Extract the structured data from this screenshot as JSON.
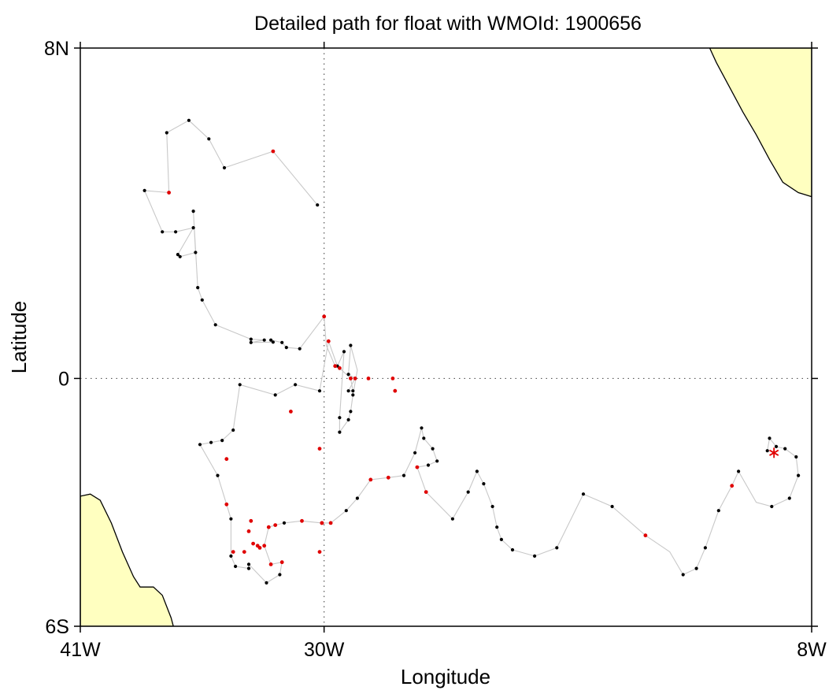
{
  "map": {
    "title": "Detailed path for float with WMOId: 1900656",
    "xlabel": "Longitude",
    "ylabel": "Latitude",
    "lon_range": [
      -41,
      -8
    ],
    "lat_range": [
      -6,
      8
    ],
    "x_ticks": [
      {
        "value": -41,
        "label": "41W"
      },
      {
        "value": -30,
        "label": "30W"
      },
      {
        "value": -8,
        "label": "8W"
      }
    ],
    "y_ticks": [
      {
        "value": 8,
        "label": "8N"
      },
      {
        "value": 0,
        "label": "0"
      },
      {
        "value": -6,
        "label": "6S"
      }
    ],
    "gridlines": {
      "lon": [
        -30
      ],
      "lat": [
        0
      ]
    },
    "colors": {
      "land": "#ffffc0",
      "coast": "#000000",
      "path": "#c8c8c8",
      "profile": "#000000",
      "highlight": "#e00000",
      "last_position": "#e00000",
      "grid": "#555555"
    },
    "land": {
      "brazil": [
        [
          -41,
          -2.85
        ],
        [
          -40.55,
          -2.8
        ],
        [
          -40.1,
          -2.95
        ],
        [
          -39.6,
          -3.5
        ],
        [
          -39.1,
          -4.2
        ],
        [
          -38.6,
          -4.8
        ],
        [
          -38.3,
          -5.05
        ],
        [
          -37.7,
          -5.05
        ],
        [
          -37.3,
          -5.25
        ],
        [
          -36.9,
          -5.8
        ],
        [
          -36.8,
          -6
        ],
        [
          -41,
          -6
        ]
      ],
      "africa": [
        [
          -12.6,
          8
        ],
        [
          -12.3,
          7.65
        ],
        [
          -11.75,
          7.1
        ],
        [
          -11.1,
          6.45
        ],
        [
          -10.5,
          5.9
        ],
        [
          -9.9,
          5.3
        ],
        [
          -9.3,
          4.75
        ],
        [
          -8.6,
          4.5
        ],
        [
          -8,
          4.4
        ],
        [
          -8,
          8
        ]
      ]
    },
    "track": [
      [
        -30.3,
        4.2
      ],
      [
        -32.3,
        5.5
      ],
      [
        -34.5,
        5.1
      ],
      [
        -35.2,
        5.8
      ],
      [
        -36.1,
        6.25
      ],
      [
        -37.1,
        5.95
      ],
      [
        -37,
        4.5
      ],
      [
        -38.1,
        4.55
      ],
      [
        -37.3,
        3.55
      ],
      [
        -36.7,
        3.55
      ],
      [
        -35.9,
        3.65
      ],
      [
        -36.6,
        3
      ],
      [
        -36.5,
        2.95
      ],
      [
        -35.8,
        3.05
      ],
      [
        -35.9,
        4.05
      ],
      [
        -35.7,
        2.2
      ],
      [
        -35.5,
        1.9
      ],
      [
        -34.9,
        1.3
      ],
      [
        -33.3,
        0.95
      ],
      [
        -32.7,
        0.93
      ],
      [
        -33.3,
        0.87
      ],
      [
        -32.3,
        0.88
      ],
      [
        -32.4,
        0.93
      ],
      [
        -31.9,
        0.87
      ],
      [
        -31.7,
        0.75
      ],
      [
        -31.1,
        0.72
      ],
      [
        -30,
        1.5
      ],
      [
        -29.9,
        0.8
      ],
      [
        -29.5,
        0.3
      ],
      [
        -29.3,
        0.25
      ],
      [
        -28.8,
        0.0
      ],
      [
        -28.7,
        -0.3
      ],
      [
        -28.9,
        -0.3
      ],
      [
        -28.6,
        0
      ],
      [
        -28.9,
        0.1
      ],
      [
        -28.8,
        0.8
      ],
      [
        -28.5,
        0.2
      ],
      [
        -28.7,
        -0.4
      ],
      [
        -28.8,
        -0.8
      ],
      [
        -28.9,
        -1.0
      ],
      [
        -29.3,
        -1.3
      ],
      [
        -29.3,
        -0.95
      ],
      [
        -29.1,
        0.65
      ],
      [
        -29.4,
        0.3
      ],
      [
        -29.8,
        0.9
      ],
      [
        -30.2,
        -0.3
      ],
      [
        -31.3,
        -0.15
      ],
      [
        -32.2,
        -0.4
      ],
      [
        -33.8,
        -0.15
      ],
      [
        -34.1,
        -1.25
      ],
      [
        -34.6,
        -1.5
      ],
      [
        -35.1,
        -1.55
      ],
      [
        -35.6,
        -1.6
      ],
      [
        -34.8,
        -2.35
      ],
      [
        -34.4,
        -3.05
      ],
      [
        -34.2,
        -3.4
      ],
      [
        -34.2,
        -4.3
      ],
      [
        -34,
        -4.55
      ],
      [
        -33.4,
        -4.6
      ],
      [
        -33.4,
        -4.5
      ],
      [
        -32.6,
        -4.95
      ],
      [
        -32,
        -4.75
      ],
      [
        -31.9,
        -4.45
      ],
      [
        -32.4,
        -4.5
      ],
      [
        -32.7,
        -4.05
      ],
      [
        -32.5,
        -3.6
      ],
      [
        -32.2,
        -3.55
      ],
      [
        -31.8,
        -3.5
      ],
      [
        -31,
        -3.45
      ],
      [
        -30.1,
        -3.5
      ],
      [
        -29.7,
        -3.5
      ],
      [
        -29.0,
        -3.2
      ],
      [
        -28.5,
        -2.9
      ],
      [
        -27.9,
        -2.45
      ],
      [
        -27.1,
        -2.4
      ],
      [
        -26.4,
        -2.35
      ],
      [
        -25.9,
        -1.8
      ],
      [
        -25.6,
        -1.2
      ],
      [
        -25.5,
        -1.45
      ],
      [
        -25.1,
        -1.7
      ],
      [
        -24.9,
        -2.0
      ],
      [
        -25.3,
        -2.1
      ],
      [
        -25.8,
        -2.15
      ],
      [
        -25.4,
        -2.75
      ],
      [
        -24.2,
        -3.4
      ],
      [
        -23.5,
        -2.75
      ],
      [
        -23.1,
        -2.25
      ],
      [
        -22.8,
        -2.55
      ],
      [
        -22.4,
        -3.1
      ],
      [
        -22.2,
        -3.6
      ],
      [
        -22.0,
        -3.9
      ],
      [
        -21.5,
        -4.15
      ],
      [
        -20.5,
        -4.3
      ],
      [
        -19.5,
        -4.1
      ],
      [
        -18.3,
        -2.8
      ],
      [
        -17.0,
        -3.1
      ],
      [
        -15.5,
        -3.8
      ],
      [
        -14.4,
        -4.2
      ],
      [
        -13.8,
        -4.75
      ],
      [
        -13.2,
        -4.6
      ],
      [
        -12.8,
        -4.1
      ],
      [
        -12.2,
        -3.2
      ],
      [
        -11.6,
        -2.6
      ],
      [
        -11.3,
        -2.25
      ],
      [
        -10.5,
        -3.0
      ],
      [
        -9.8,
        -3.1
      ],
      [
        -9.0,
        -2.9
      ],
      [
        -8.6,
        -2.35
      ],
      [
        -8.7,
        -1.9
      ],
      [
        -9.2,
        -1.7
      ],
      [
        -9.6,
        -1.65
      ],
      [
        -9.9,
        -1.45
      ],
      [
        -10.0,
        -1.75
      ]
    ],
    "profiles": [
      [
        -30.3,
        4.2
      ],
      [
        -34.5,
        5.1
      ],
      [
        -35.2,
        5.8
      ],
      [
        -36.1,
        6.25
      ],
      [
        -37.1,
        5.95
      ],
      [
        -38.1,
        4.55
      ],
      [
        -37.3,
        3.55
      ],
      [
        -36.7,
        3.55
      ],
      [
        -35.9,
        3.65
      ],
      [
        -36.6,
        3
      ],
      [
        -36.5,
        2.95
      ],
      [
        -35.8,
        3.05
      ],
      [
        -35.9,
        4.05
      ],
      [
        -35.7,
        2.2
      ],
      [
        -35.5,
        1.9
      ],
      [
        -34.9,
        1.3
      ],
      [
        -33.3,
        0.95
      ],
      [
        -32.7,
        0.93
      ],
      [
        -33.3,
        0.87
      ],
      [
        -32.3,
        0.88
      ],
      [
        -32.4,
        0.93
      ],
      [
        -31.9,
        0.87
      ],
      [
        -31.7,
        0.75
      ],
      [
        -31.1,
        0.72
      ],
      [
        -30,
        1.5
      ],
      [
        -29.3,
        0.25
      ],
      [
        -28.7,
        -0.3
      ],
      [
        -28.9,
        -0.3
      ],
      [
        -28.9,
        0.1
      ],
      [
        -28.8,
        0.8
      ],
      [
        -28.7,
        -0.4
      ],
      [
        -28.8,
        -0.8
      ],
      [
        -28.9,
        -1.0
      ],
      [
        -29.3,
        -1.3
      ],
      [
        -29.3,
        -0.95
      ],
      [
        -29.1,
        0.65
      ],
      [
        -29.4,
        0.3
      ],
      [
        -30.2,
        -0.3
      ],
      [
        -31.3,
        -0.15
      ],
      [
        -32.2,
        -0.4
      ],
      [
        -33.8,
        -0.15
      ],
      [
        -34.1,
        -1.25
      ],
      [
        -34.6,
        -1.5
      ],
      [
        -35.1,
        -1.55
      ],
      [
        -35.6,
        -1.6
      ],
      [
        -34.8,
        -2.35
      ],
      [
        -34.2,
        -3.4
      ],
      [
        -34.2,
        -4.3
      ],
      [
        -34,
        -4.55
      ],
      [
        -33.4,
        -4.6
      ],
      [
        -33.4,
        -4.5
      ],
      [
        -32.6,
        -4.95
      ],
      [
        -32,
        -4.75
      ],
      [
        -31.8,
        -3.5
      ],
      [
        -29.7,
        -3.5
      ],
      [
        -29.0,
        -3.2
      ],
      [
        -28.5,
        -2.9
      ],
      [
        -26.4,
        -2.35
      ],
      [
        -25.9,
        -1.8
      ],
      [
        -25.6,
        -1.2
      ],
      [
        -25.5,
        -1.45
      ],
      [
        -25.1,
        -1.7
      ],
      [
        -24.9,
        -2.0
      ],
      [
        -25.3,
        -2.1
      ],
      [
        -24.2,
        -3.4
      ],
      [
        -23.5,
        -2.75
      ],
      [
        -23.1,
        -2.25
      ],
      [
        -22.8,
        -2.55
      ],
      [
        -22.4,
        -3.1
      ],
      [
        -22.2,
        -3.6
      ],
      [
        -22.0,
        -3.9
      ],
      [
        -21.5,
        -4.15
      ],
      [
        -20.5,
        -4.3
      ],
      [
        -19.5,
        -4.1
      ],
      [
        -18.3,
        -2.8
      ],
      [
        -17.0,
        -3.1
      ],
      [
        -15.5,
        -3.8
      ],
      [
        -13.8,
        -4.75
      ],
      [
        -13.2,
        -4.6
      ],
      [
        -12.8,
        -4.1
      ],
      [
        -12.2,
        -3.2
      ],
      [
        -11.3,
        -2.25
      ],
      [
        -9.8,
        -3.1
      ],
      [
        -9.0,
        -2.9
      ],
      [
        -8.6,
        -2.35
      ],
      [
        -8.7,
        -1.9
      ],
      [
        -9.2,
        -1.7
      ],
      [
        -9.6,
        -1.65
      ],
      [
        -9.9,
        -1.45
      ],
      [
        -10.0,
        -1.75
      ]
    ],
    "highlighted_profiles": [
      [
        -32.3,
        5.5
      ],
      [
        -37,
        4.5
      ],
      [
        -30,
        1.5
      ],
      [
        -29.5,
        0.3
      ],
      [
        -29.3,
        0.25
      ],
      [
        -28.8,
        0.0
      ],
      [
        -28.6,
        0
      ],
      [
        -28,
        0
      ],
      [
        -26.9,
        0
      ],
      [
        -26.8,
        -0.3
      ],
      [
        -29.8,
        0.9
      ],
      [
        -30.2,
        -1.7
      ],
      [
        -31.5,
        -0.8
      ],
      [
        -34.4,
        -1.95
      ],
      [
        -34.4,
        -3.05
      ],
      [
        -30.1,
        -3.5
      ],
      [
        -31,
        -3.45
      ],
      [
        -32.5,
        -3.6
      ],
      [
        -32.2,
        -3.55
      ],
      [
        -32.7,
        -4.05
      ],
      [
        -33.4,
        -3.7
      ],
      [
        -33.3,
        -3.45
      ],
      [
        -33.2,
        -4.0
      ],
      [
        -33.0,
        -4.05
      ],
      [
        -32.9,
        -4.1
      ],
      [
        -33.6,
        -4.2
      ],
      [
        -34.1,
        -4.2
      ],
      [
        -31.9,
        -4.45
      ],
      [
        -32.4,
        -4.5
      ],
      [
        -30.1,
        -3.5
      ],
      [
        -29.7,
        -3.5
      ],
      [
        -30.2,
        -4.2
      ],
      [
        -27.9,
        -2.45
      ],
      [
        -27.1,
        -2.4
      ],
      [
        -25.8,
        -2.15
      ],
      [
        -25.4,
        -2.75
      ],
      [
        -15.5,
        -3.8
      ],
      [
        -11.6,
        -2.6
      ]
    ],
    "last_position": [
      -9.7,
      -1.8
    ]
  }
}
